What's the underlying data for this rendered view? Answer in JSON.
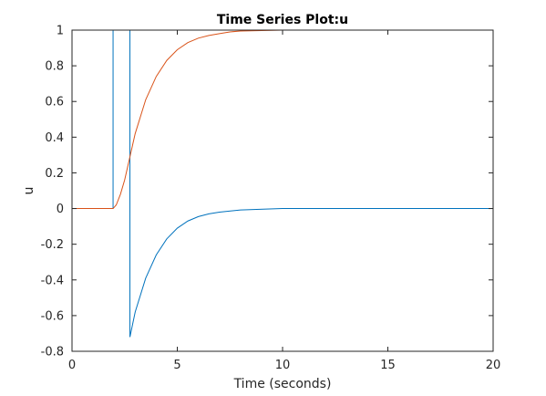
{
  "chart_data": {
    "type": "line",
    "title": "Time Series Plot:u",
    "xlabel": "Time (seconds)",
    "ylabel": "u",
    "xlim": [
      0,
      20
    ],
    "ylim": [
      -0.8,
      1
    ],
    "xticks": [
      0,
      5,
      10,
      15,
      20
    ],
    "yticks": [
      -0.8,
      -0.6,
      -0.4,
      -0.2,
      0,
      0.2,
      0.4,
      0.6,
      0.8,
      1
    ],
    "grid": false,
    "legend": "none",
    "series": [
      {
        "color": "#0072BD",
        "x": [
          0,
          1.95,
          1.95,
          2.75,
          2.75,
          3.0,
          3.5,
          4.0,
          4.5,
          5.0,
          5.5,
          6.0,
          6.5,
          7.0,
          8.0,
          10.0,
          20.0
        ],
        "y": [
          0,
          0,
          1,
          1,
          -0.72,
          -0.58,
          -0.39,
          -0.26,
          -0.17,
          -0.11,
          -0.07,
          -0.045,
          -0.03,
          -0.02,
          -0.008,
          0,
          0
        ]
      },
      {
        "color": "#D95319",
        "x": [
          0,
          1.95,
          2.1,
          2.3,
          2.5,
          2.75,
          3.0,
          3.5,
          4.0,
          4.5,
          5.0,
          5.5,
          6.0,
          6.5,
          7.0,
          7.5,
          8.0,
          10.0,
          20.0
        ],
        "y": [
          0,
          0,
          0.02,
          0.08,
          0.16,
          0.29,
          0.42,
          0.61,
          0.74,
          0.83,
          0.89,
          0.93,
          0.955,
          0.97,
          0.98,
          0.99,
          0.995,
          1.0,
          1.0
        ]
      }
    ]
  }
}
